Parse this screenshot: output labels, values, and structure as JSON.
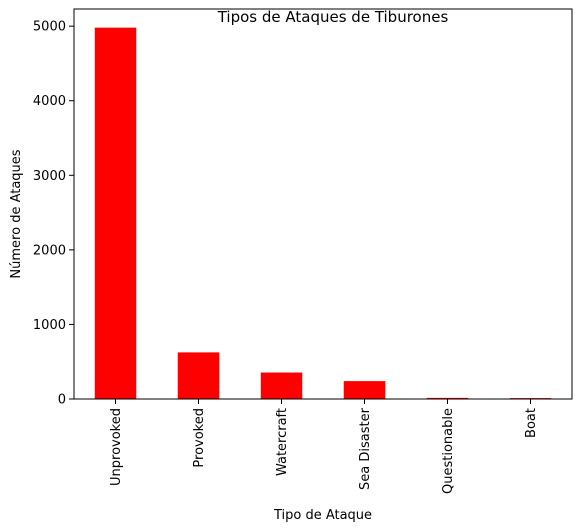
{
  "chart_data": {
    "type": "bar",
    "title": "Tipos de Ataques de Tiburones",
    "xlabel": "Tipo de Ataque",
    "ylabel": "Número de Ataques",
    "categories": [
      "Unprovoked",
      "Provoked",
      "Watercraft",
      "Sea Disaster",
      "Questionable",
      "Boat"
    ],
    "values": [
      4980,
      625,
      355,
      240,
      15,
      12
    ],
    "ylim": [
      0,
      5230
    ],
    "yticks": [
      0,
      1000,
      2000,
      3000,
      4000,
      5000
    ],
    "bar_color": "#ff0000",
    "grid": false
  }
}
